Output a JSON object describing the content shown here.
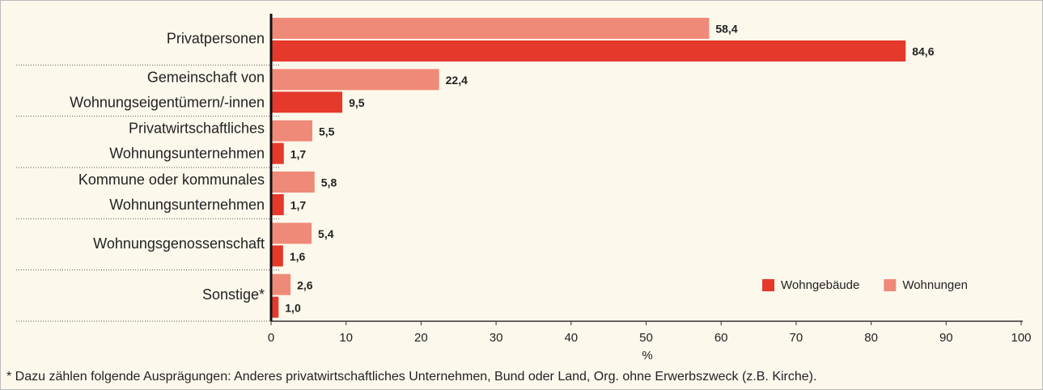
{
  "chart_data": {
    "type": "hbar",
    "categories": [
      [
        "Privatpersonen"
      ],
      [
        "Gemeinschaft von",
        "Wohnungseigentümern/-innen"
      ],
      [
        "Privatwirtschaftliches",
        "Wohnungsunternehmen"
      ],
      [
        "Kommune oder kommunales",
        "Wohnungsunternehmen"
      ],
      [
        "Wohnungsgenossenschaft"
      ],
      [
        "Sonstige*"
      ]
    ],
    "series": [
      {
        "name": "Wohngebäude",
        "color": "#e5392b",
        "values": [
          84.6,
          9.5,
          1.7,
          1.7,
          1.6,
          1.0
        ],
        "value_labels": [
          "84,6",
          "9,5",
          "1,7",
          "1,7",
          "1,6",
          "1,0"
        ]
      },
      {
        "name": "Wohnungen",
        "color": "#f08a78",
        "values": [
          58.4,
          22.4,
          5.5,
          5.8,
          5.4,
          2.6
        ],
        "value_labels": [
          "58,4",
          "22,4",
          "5,5",
          "5,8",
          "5,4",
          "2,6"
        ]
      }
    ],
    "xlim": [
      0,
      100
    ],
    "xticks": [
      0,
      10,
      20,
      30,
      40,
      50,
      60,
      70,
      80,
      90,
      100
    ],
    "xlabel": "%",
    "legend": "lower right",
    "footnote": "* Dazu zählen folgende Ausprägungen: Anderes privatwirtschaftliches Unternehmen, Bund oder Land, Org. ohne Erwerbszweck (z.B. Kirche)."
  }
}
